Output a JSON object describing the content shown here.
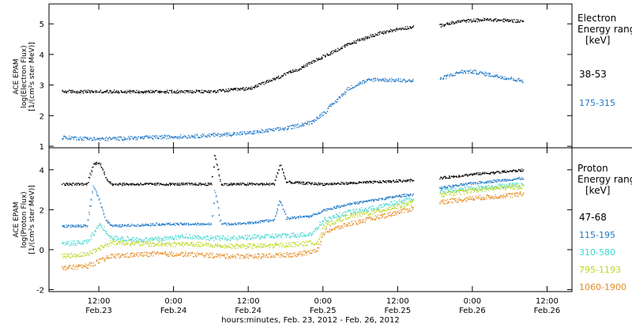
{
  "footer": {
    "xaxis_caption": "hours:minutes, Feb. 23, 2012 - Feb. 26, 2012"
  },
  "x_ticks": [
    {
      "time": "12:00",
      "date": "Feb.23",
      "hours": 12
    },
    {
      "time": "0:00",
      "date": "Feb.24",
      "hours": 24
    },
    {
      "time": "12:00",
      "date": "Feb.24",
      "hours": 36
    },
    {
      "time": "0:00",
      "date": "Feb.25",
      "hours": 48
    },
    {
      "time": "12:00",
      "date": "Feb.25",
      "hours": 60
    },
    {
      "time": "0:00",
      "date": "Feb.26",
      "hours": 72
    },
    {
      "time": "12:00",
      "date": "Feb.26",
      "hours": 84
    }
  ],
  "colors": {
    "black": "#000000",
    "blue": "#1f78c8",
    "cyan": "#3fd7d2",
    "yellow": "#b9d81b",
    "orange": "#e58a1f"
  },
  "chart_data": [
    {
      "type": "scatter",
      "ylabel_lines": [
        "ACE EPAM",
        "log(Electron Flux)",
        "[1/(cm²s ster MeV)]"
      ],
      "legend_title": [
        "Electron",
        "Energy range",
        "[keV]"
      ],
      "yticks": [
        1,
        2,
        3,
        4,
        5
      ],
      "ylim": [
        0.95,
        5.65
      ],
      "xlim_hours": [
        4,
        88
      ],
      "data_gap_hours": [
        62.5,
        66.5
      ],
      "series": [
        {
          "name": "38-53",
          "color": "#000000",
          "points": [
            [
              6,
              2.8
            ],
            [
              12,
              2.8
            ],
            [
              20,
              2.8
            ],
            [
              30,
              2.8
            ],
            [
              36,
              2.9
            ],
            [
              40,
              3.2
            ],
            [
              44,
              3.55
            ],
            [
              48,
              3.95
            ],
            [
              52,
              4.35
            ],
            [
              56,
              4.65
            ],
            [
              60,
              4.85
            ],
            [
              62.5,
              4.92
            ],
            [
              66.5,
              4.95
            ],
            [
              70,
              5.1
            ],
            [
              74,
              5.15
            ],
            [
              78,
              5.12
            ],
            [
              80,
              5.1
            ]
          ]
        },
        {
          "name": "175-315",
          "color": "#1f78c8",
          "points": [
            [
              6,
              1.3
            ],
            [
              12,
              1.25
            ],
            [
              20,
              1.3
            ],
            [
              28,
              1.35
            ],
            [
              36,
              1.45
            ],
            [
              42,
              1.6
            ],
            [
              46,
              1.8
            ],
            [
              48,
              2.1
            ],
            [
              50,
              2.5
            ],
            [
              52,
              2.9
            ],
            [
              54,
              3.1
            ],
            [
              56,
              3.2
            ],
            [
              62.5,
              3.15
            ],
            [
              66.5,
              3.2
            ],
            [
              70,
              3.45
            ],
            [
              72,
              3.45
            ],
            [
              76,
              3.3
            ],
            [
              80,
              3.15
            ]
          ]
        }
      ]
    },
    {
      "type": "scatter",
      "ylabel_lines": [
        "ACE EPAM",
        "log(Proton Flux)",
        "[1/(cm²s ster MeV)]"
      ],
      "legend_title": [
        "Proton",
        "Energy range",
        "[keV]"
      ],
      "yticks": [
        -2,
        0,
        2,
        4
      ],
      "ylim": [
        -2.1,
        5.1
      ],
      "xlim_hours": [
        4,
        88
      ],
      "data_gap_hours": [
        62.5,
        66.5
      ],
      "series": [
        {
          "name": "47-68",
          "color": "#000000",
          "points": [
            [
              6,
              3.3
            ],
            [
              10,
              3.3
            ],
            [
              11,
              4.3
            ],
            [
              12,
              4.4
            ],
            [
              13,
              3.6
            ],
            [
              14,
              3.3
            ],
            [
              30,
              3.3
            ],
            [
              30.5,
              4.8
            ],
            [
              31.5,
              3.3
            ],
            [
              40,
              3.3
            ],
            [
              41,
              4.3
            ],
            [
              42,
              3.4
            ],
            [
              48,
              3.3
            ],
            [
              56,
              3.4
            ],
            [
              62.5,
              3.5
            ],
            [
              66.5,
              3.6
            ],
            [
              72,
              3.8
            ],
            [
              80,
              4.0
            ]
          ]
        },
        {
          "name": "115-195",
          "color": "#1f78c8",
          "points": [
            [
              6,
              1.2
            ],
            [
              10,
              1.2
            ],
            [
              11,
              3.2
            ],
            [
              12,
              2.5
            ],
            [
              13,
              1.5
            ],
            [
              14,
              1.2
            ],
            [
              22,
              1.3
            ],
            [
              30,
              1.3
            ],
            [
              30.5,
              3.0
            ],
            [
              31.5,
              1.3
            ],
            [
              36,
              1.35
            ],
            [
              40,
              1.5
            ],
            [
              41,
              2.5
            ],
            [
              42,
              1.6
            ],
            [
              46,
              1.7
            ],
            [
              48,
              2.0
            ],
            [
              52,
              2.3
            ],
            [
              56,
              2.5
            ],
            [
              60,
              2.7
            ],
            [
              62.5,
              2.8
            ],
            [
              66.5,
              3.1
            ],
            [
              72,
              3.35
            ],
            [
              80,
              3.6
            ]
          ]
        },
        {
          "name": "310-580",
          "color": "#3fd7d2",
          "points": [
            [
              6,
              0.3
            ],
            [
              10,
              0.4
            ],
            [
              12,
              1.3
            ],
            [
              14,
              0.6
            ],
            [
              20,
              0.5
            ],
            [
              26,
              0.7
            ],
            [
              30,
              0.6
            ],
            [
              34,
              0.6
            ],
            [
              40,
              0.7
            ],
            [
              46,
              0.8
            ],
            [
              48,
              1.5
            ],
            [
              52,
              1.9
            ],
            [
              56,
              2.1
            ],
            [
              60,
              2.4
            ],
            [
              62.5,
              2.6
            ],
            [
              66.5,
              2.9
            ],
            [
              72,
              3.1
            ],
            [
              80,
              3.3
            ]
          ]
        },
        {
          "name": "795-1193",
          "color": "#b9d81b",
          "points": [
            [
              6,
              -0.3
            ],
            [
              10,
              -0.2
            ],
            [
              14,
              0.4
            ],
            [
              20,
              0.3
            ],
            [
              26,
              0.3
            ],
            [
              32,
              0.2
            ],
            [
              38,
              0.2
            ],
            [
              44,
              0.3
            ],
            [
              47,
              0.4
            ],
            [
              48,
              1.2
            ],
            [
              52,
              1.7
            ],
            [
              56,
              1.9
            ],
            [
              60,
              2.2
            ],
            [
              62.5,
              2.4
            ],
            [
              66.5,
              2.75
            ],
            [
              72,
              3.0
            ],
            [
              80,
              3.2
            ]
          ]
        },
        {
          "name": "1060-1900",
          "color": "#e58a1f",
          "points": [
            [
              6,
              -0.9
            ],
            [
              10,
              -0.8
            ],
            [
              14,
              -0.3
            ],
            [
              20,
              -0.2
            ],
            [
              26,
              -0.2
            ],
            [
              32,
              -0.3
            ],
            [
              38,
              -0.3
            ],
            [
              44,
              -0.2
            ],
            [
              47,
              0.0
            ],
            [
              48,
              0.9
            ],
            [
              52,
              1.3
            ],
            [
              56,
              1.6
            ],
            [
              60,
              1.9
            ],
            [
              62.5,
              2.1
            ],
            [
              66.5,
              2.4
            ],
            [
              72,
              2.6
            ],
            [
              80,
              2.8
            ]
          ]
        }
      ]
    }
  ]
}
